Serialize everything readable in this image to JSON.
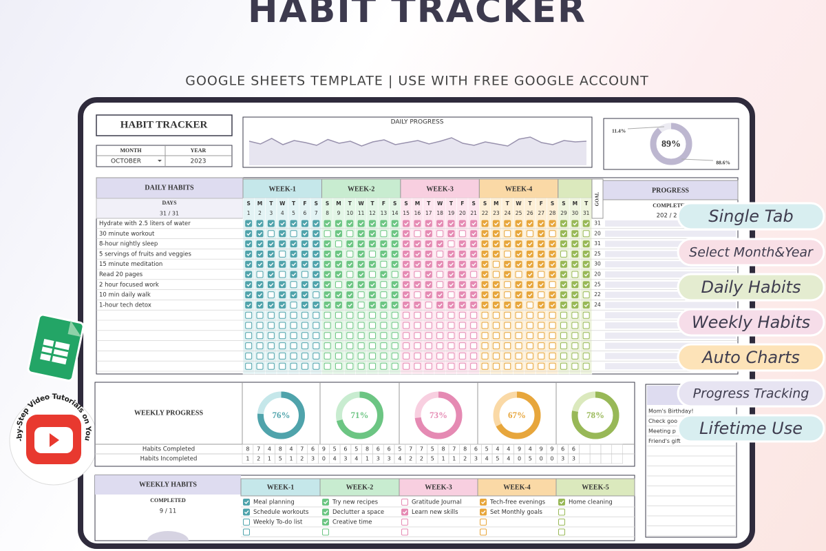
{
  "header": {
    "title": "HABIT TRACKER",
    "subtitle": "GOOGLE SHEETS TEMPLATE | USE WITH FREE GOOGLE ACCOUNT"
  },
  "tracker": {
    "title": "HABIT TRACKER",
    "month_label": "MONTH",
    "year_label": "YEAR",
    "month": "OCTOBER",
    "year": "2023"
  },
  "daily_progress": {
    "title": "DAILY PROGRESS",
    "values": [
      70,
      62,
      78,
      60,
      72,
      66,
      58,
      75,
      64,
      70,
      56,
      68,
      74,
      60,
      66,
      72,
      62,
      70,
      80,
      64,
      58,
      68,
      62,
      56,
      76,
      82,
      66,
      60,
      72,
      68,
      70
    ]
  },
  "overall": {
    "value": 89,
    "label": "89%",
    "incomplete_label": "11.4%",
    "complete_label": "88.6%"
  },
  "daily_habits": {
    "title": "DAILY HABITS",
    "days_label": "DAYS",
    "days_count": "31 / 31",
    "goal_label": "GOAL",
    "progress_label": "PROGRESS",
    "completed_label": "COMPLETED",
    "completed_value": "202 / 225",
    "weeks": [
      "WEEK-1",
      "WEEK-2",
      "WEEK-3",
      "WEEK-4"
    ],
    "weekdays": [
      "S",
      "M",
      "T",
      "W",
      "T",
      "F",
      "S",
      "S",
      "M",
      "T",
      "W",
      "T",
      "F",
      "S",
      "S",
      "M",
      "T",
      "W",
      "T",
      "F",
      "S",
      "S",
      "M",
      "T",
      "W",
      "T",
      "F",
      "S",
      "S",
      "M",
      "T"
    ],
    "days": [
      1,
      2,
      3,
      4,
      5,
      6,
      7,
      8,
      9,
      10,
      11,
      12,
      13,
      14,
      15,
      16,
      17,
      18,
      19,
      20,
      21,
      22,
      23,
      24,
      25,
      26,
      27,
      28,
      29,
      30,
      31
    ],
    "habits": [
      {
        "name": "Hydrate with 2.5 liters of water",
        "goal": 31,
        "checks": [
          1,
          1,
          1,
          1,
          1,
          1,
          1,
          1,
          1,
          1,
          1,
          1,
          1,
          1,
          1,
          1,
          1,
          1,
          1,
          1,
          1,
          1,
          1,
          1,
          1,
          1,
          1,
          1,
          1,
          1,
          1
        ]
      },
      {
        "name": "30 minute workout",
        "goal": 20,
        "checks": [
          1,
          1,
          0,
          1,
          0,
          1,
          1,
          0,
          1,
          0,
          1,
          1,
          0,
          1,
          1,
          0,
          1,
          0,
          1,
          0,
          1,
          1,
          1,
          0,
          1,
          0,
          1,
          0,
          1,
          1,
          0
        ]
      },
      {
        "name": "8-hour nightly sleep",
        "goal": 31,
        "checks": [
          1,
          1,
          1,
          1,
          1,
          1,
          1,
          1,
          0,
          1,
          1,
          1,
          1,
          1,
          1,
          1,
          1,
          1,
          0,
          1,
          1,
          1,
          1,
          1,
          1,
          1,
          1,
          1,
          1,
          1,
          1
        ]
      },
      {
        "name": "5 servings of fruits and veggies",
        "goal": 25,
        "checks": [
          1,
          1,
          1,
          0,
          1,
          1,
          1,
          1,
          1,
          0,
          1,
          0,
          1,
          1,
          1,
          1,
          1,
          0,
          1,
          1,
          1,
          1,
          1,
          0,
          1,
          1,
          1,
          1,
          0,
          1,
          1
        ]
      },
      {
        "name": "15 minute meditation",
        "goal": 30,
        "checks": [
          1,
          1,
          1,
          1,
          1,
          1,
          1,
          1,
          1,
          1,
          1,
          1,
          0,
          1,
          1,
          1,
          1,
          1,
          1,
          1,
          1,
          1,
          0,
          1,
          1,
          1,
          1,
          1,
          1,
          1,
          1
        ]
      },
      {
        "name": "Read 20 pages",
        "goal": 20,
        "checks": [
          1,
          0,
          1,
          0,
          1,
          0,
          1,
          1,
          1,
          0,
          1,
          0,
          1,
          0,
          1,
          0,
          1,
          0,
          1,
          1,
          0,
          1,
          0,
          1,
          0,
          1,
          0,
          1,
          1,
          0,
          1
        ]
      },
      {
        "name": "2 hour focused work",
        "goal": 25,
        "checks": [
          1,
          1,
          1,
          1,
          0,
          1,
          1,
          1,
          0,
          1,
          1,
          1,
          0,
          1,
          1,
          1,
          1,
          0,
          1,
          1,
          1,
          1,
          1,
          0,
          1,
          1,
          1,
          0,
          1,
          1,
          1
        ]
      },
      {
        "name": "10 min daily walk",
        "goal": 22,
        "checks": [
          1,
          1,
          0,
          1,
          1,
          1,
          0,
          1,
          1,
          1,
          0,
          1,
          0,
          1,
          1,
          0,
          1,
          1,
          0,
          1,
          1,
          1,
          1,
          0,
          1,
          1,
          0,
          1,
          1,
          1,
          0
        ]
      },
      {
        "name": "1-hour tech detox",
        "goal": 24,
        "checks": [
          1,
          1,
          1,
          1,
          0,
          1,
          1,
          1,
          1,
          1,
          0,
          1,
          1,
          1,
          1,
          1,
          0,
          1,
          1,
          1,
          1,
          1,
          1,
          1,
          1,
          0,
          1,
          1,
          1,
          1,
          1
        ]
      }
    ]
  },
  "weekly_progress": {
    "title": "WEEKLY PROGRESS",
    "percents": [
      {
        "value": 76,
        "label": "76%"
      },
      {
        "value": 71,
        "label": "71%"
      },
      {
        "value": 73,
        "label": "73%"
      },
      {
        "value": 67,
        "label": "67%"
      },
      {
        "value": 78,
        "label": "78%"
      }
    ],
    "completed_label": "Habits Completed",
    "incompleted_label": "Habits Incompleted",
    "completed": [
      8,
      7,
      4,
      8,
      4,
      7,
      6,
      9,
      5,
      6,
      5,
      8,
      6,
      6,
      5,
      7,
      7,
      5,
      8,
      7,
      8,
      6,
      5,
      4,
      4,
      9,
      4,
      9,
      9,
      6,
      6
    ],
    "incompleted": [
      1,
      2,
      1,
      5,
      1,
      2,
      3,
      0,
      4,
      3,
      4,
      1,
      3,
      3,
      4,
      2,
      2,
      5,
      1,
      1,
      2,
      3,
      4,
      5,
      4,
      0,
      5,
      0,
      0,
      3,
      3
    ]
  },
  "notes": {
    "items": [
      "Mom's Birthday!",
      "Check goo",
      "Meeting p",
      "Friend's gift"
    ]
  },
  "weekly_habits": {
    "title": "WEEKLY HABITS",
    "completed_label": "COMPLETED",
    "completed_value": "9 / 11",
    "weeks": [
      {
        "name": "WEEK-1",
        "items": [
          {
            "text": "Meal planning",
            "done": 1
          },
          {
            "text": "Schedule workouts",
            "done": 1
          },
          {
            "text": "Weekly To-do list",
            "done": 0
          }
        ]
      },
      {
        "name": "WEEK-2",
        "items": [
          {
            "text": "Try new recipes",
            "done": 1
          },
          {
            "text": "Declutter a space",
            "done": 1
          },
          {
            "text": "Creative time",
            "done": 1
          }
        ]
      },
      {
        "name": "WEEK-3",
        "items": [
          {
            "text": "Gratitude Journal",
            "done": 0
          },
          {
            "text": "Learn new skills",
            "done": 1
          }
        ]
      },
      {
        "name": "WEEK-4",
        "items": [
          {
            "text": "Tech-free evenings",
            "done": 1
          },
          {
            "text": "Set Monthly goals",
            "done": 1
          }
        ]
      },
      {
        "name": "WEEK-5",
        "items": [
          {
            "text": "Home cleaning",
            "done": 1
          }
        ]
      }
    ]
  },
  "features": [
    "Single Tab",
    "Select Month&Year",
    "Daily Habits",
    "Weekly Habits",
    "Auto Charts",
    "Progress Tracking",
    "Lifetime Use"
  ],
  "badge": {
    "text": "Step-by-Step Video Tutorials on YouTube"
  }
}
